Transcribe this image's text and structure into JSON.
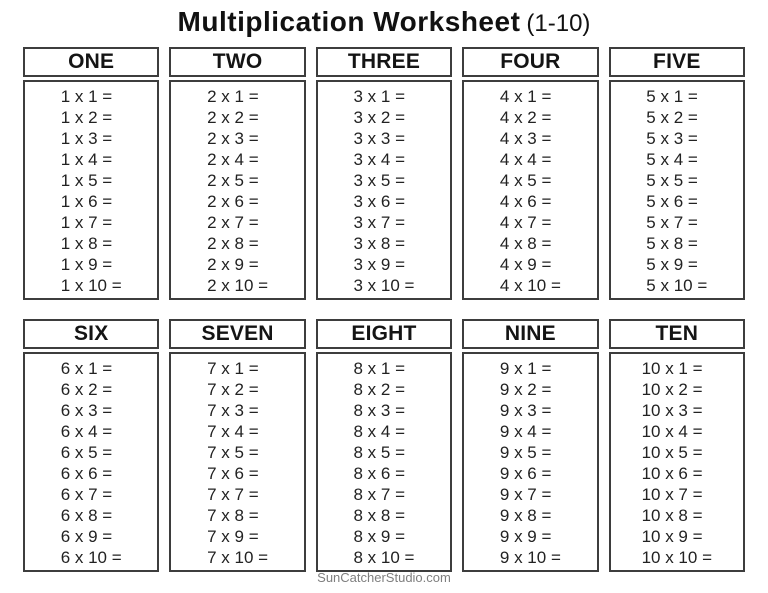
{
  "title": {
    "main": "Multiplication Worksheet",
    "range": "(1-10)"
  },
  "footer": {
    "credit": "SunCatcherStudio.com"
  },
  "tables": [
    {
      "label": "ONE",
      "problems": [
        "1 x 1 =",
        "1 x 2 =",
        "1 x 3 =",
        "1 x 4 =",
        "1 x 5 =",
        "1 x 6 =",
        "1 x 7 =",
        "1 x 8 =",
        "1 x 9 =",
        "1 x 10 ="
      ]
    },
    {
      "label": "TWO",
      "problems": [
        "2 x 1 =",
        "2 x 2 =",
        "2 x 3 =",
        "2 x 4 =",
        "2 x 5 =",
        "2 x 6 =",
        "2 x 7 =",
        "2 x 8 =",
        "2 x 9 =",
        "2 x 10 ="
      ]
    },
    {
      "label": "THREE",
      "problems": [
        "3 x 1 =",
        "3 x 2 =",
        "3 x 3 =",
        "3 x 4 =",
        "3 x 5 =",
        "3 x 6 =",
        "3 x 7 =",
        "3 x 8 =",
        "3 x 9 =",
        "3 x 10 ="
      ]
    },
    {
      "label": "FOUR",
      "problems": [
        "4 x 1 =",
        "4 x 2 =",
        "4 x 3 =",
        "4 x 4 =",
        "4 x 5 =",
        "4 x 6 =",
        "4 x 7 =",
        "4 x 8 =",
        "4 x 9 =",
        "4 x 10 ="
      ]
    },
    {
      "label": "FIVE",
      "problems": [
        "5 x 1 =",
        "5 x 2 =",
        "5 x 3 =",
        "5 x 4 =",
        "5 x 5 =",
        "5 x 6 =",
        "5 x 7 =",
        "5 x 8 =",
        "5 x 9 =",
        "5 x 10 ="
      ]
    },
    {
      "label": "SIX",
      "problems": [
        "6 x 1 =",
        "6 x 2 =",
        "6 x 3 =",
        "6 x 4 =",
        "6 x 5 =",
        "6 x 6 =",
        "6 x 7 =",
        "6 x 8 =",
        "6 x 9 =",
        "6 x 10 ="
      ]
    },
    {
      "label": "SEVEN",
      "problems": [
        "7 x 1 =",
        "7 x 2 =",
        "7 x 3 =",
        "7 x 4 =",
        "7 x 5 =",
        "7 x 6 =",
        "7 x 7 =",
        "7 x 8 =",
        "7 x 9 =",
        "7 x 10 ="
      ]
    },
    {
      "label": "EIGHT",
      "problems": [
        "8 x 1 =",
        "8 x 2 =",
        "8 x 3 =",
        "8 x 4 =",
        "8 x 5 =",
        "8 x 6 =",
        "8 x 7 =",
        "8 x 8 =",
        "8 x 9 =",
        "8 x 10 ="
      ]
    },
    {
      "label": "NINE",
      "problems": [
        "9 x 1 =",
        "9 x 2 =",
        "9 x 3 =",
        "9 x 4 =",
        "9 x 5 =",
        "9 x 6 =",
        "9 x 7 =",
        "9 x 8 =",
        "9 x 9 =",
        "9 x 10 ="
      ]
    },
    {
      "label": "TEN",
      "problems": [
        "10 x 1 =",
        "10 x 2 =",
        "10 x 3 =",
        "10 x 4 =",
        "10 x 5 =",
        "10 x 6 =",
        "10 x 7 =",
        "10 x 8 =",
        "10 x 9 =",
        "10 x 10 ="
      ]
    }
  ]
}
